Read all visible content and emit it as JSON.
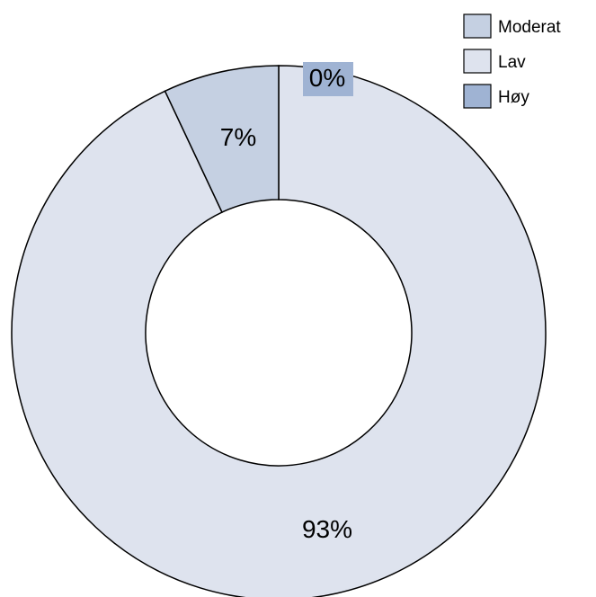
{
  "chart_data": {
    "type": "pie",
    "style": "donut",
    "slices": [
      {
        "label": "Moderat",
        "value": 7,
        "display": "7%",
        "color": "#c5d0e2"
      },
      {
        "label": "Lav",
        "value": 93,
        "display": "93%",
        "color": "#dee3ee"
      },
      {
        "label": "Høy",
        "value": 0,
        "display": "0%",
        "color": "#9fb3d3"
      }
    ],
    "legend": {
      "placement": "top-right",
      "items": [
        {
          "label": "Moderat",
          "color": "#c5d0e2"
        },
        {
          "label": "Lav",
          "color": "#dee3ee"
        },
        {
          "label": "Høy",
          "color": "#9fb3d3"
        }
      ]
    }
  }
}
